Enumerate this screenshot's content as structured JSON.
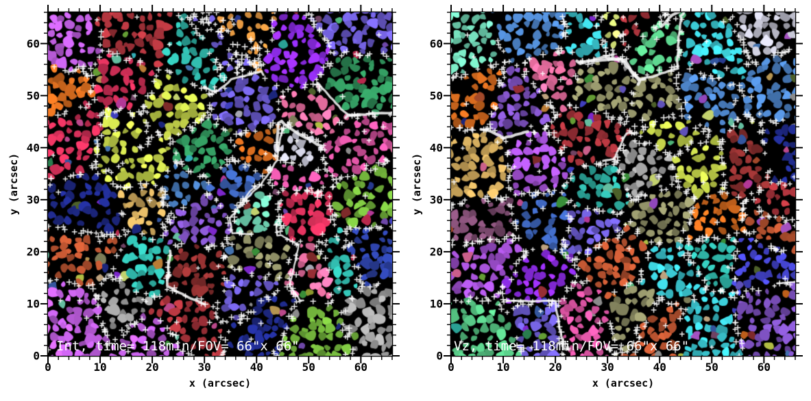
{
  "figure": {
    "background": "#ffffff",
    "panel_count": 2
  },
  "render": {
    "background": "#000000",
    "axis_color": "#000000",
    "tick_label_color": "#000000",
    "annotation_color": "#ffffff",
    "cross_color": "#ffffff",
    "lane_color": "#f5f5f5",
    "seeds": [
      101,
      202
    ],
    "blob_spacing": 13,
    "streaks_per_panel": 8,
    "cross_samples": 6500,
    "sparse_crosses": 55,
    "palette": [
      "#9aa832",
      "#c3d24a",
      "#d9e87a",
      "#6fae3a",
      "#3f9e3f",
      "#2e8b57",
      "#57c785",
      "#6fd3b2",
      "#2fb3a6",
      "#39c2cc",
      "#4a7fc1",
      "#3a5fb0",
      "#2b3f9e",
      "#1f2a8a",
      "#4646d2",
      "#6a5acd",
      "#7a4fbb",
      "#8a2be2",
      "#a04fd0",
      "#b75ad6",
      "#c73ea8",
      "#d0509a",
      "#e06a9a",
      "#cc2e55",
      "#a8333b",
      "#8c2f2f",
      "#b4512f",
      "#d2691e",
      "#cf8a3b",
      "#c9a45a",
      "#d2b48c",
      "#8b8b63",
      "#9a9a9a",
      "#b8b8c6",
      "#556b2f",
      "#7b4a6e"
    ]
  },
  "chart_data": [
    {
      "type": "heatmap",
      "panel": "left",
      "quantity": "intensity granule segmentation",
      "title": "Int, time= 118min/FOV= 66\"x 66\"",
      "xlabel": "x (arcsec)",
      "ylabel": "y (arcsec)",
      "xlim": [
        0,
        66
      ],
      "ylim": [
        0,
        66
      ],
      "xticks": [
        0,
        10,
        20,
        30,
        40,
        50,
        60
      ],
      "yticks": [
        0,
        10,
        20,
        30,
        40,
        50,
        60
      ],
      "minor_tick_step": 2,
      "grid": false,
      "legend": false,
      "description": "Randomly colour-coded map of segmented solar granules from the intensity image; white plus-sign chains and bright lanes trace the supergranular network boundaries.",
      "seed": 101
    },
    {
      "type": "heatmap",
      "panel": "right",
      "quantity": "vertical velocity granule segmentation",
      "title": "Vz, time= 118min/FOV= 66\"x 66\"",
      "xlabel": "x (arcsec)",
      "ylabel": "y (arcsec)",
      "xlim": [
        0,
        66
      ],
      "ylim": [
        0,
        66
      ],
      "xticks": [
        0,
        10,
        20,
        30,
        40,
        50,
        60
      ],
      "yticks": [
        0,
        10,
        20,
        30,
        40,
        50,
        60
      ],
      "minor_tick_step": 2,
      "grid": false,
      "legend": false,
      "description": "Randomly colour-coded map of segmented granules from the vertical velocity (Vz) map; white plus-sign chains and bright lanes trace the supergranular network boundaries.",
      "seed": 202
    }
  ]
}
